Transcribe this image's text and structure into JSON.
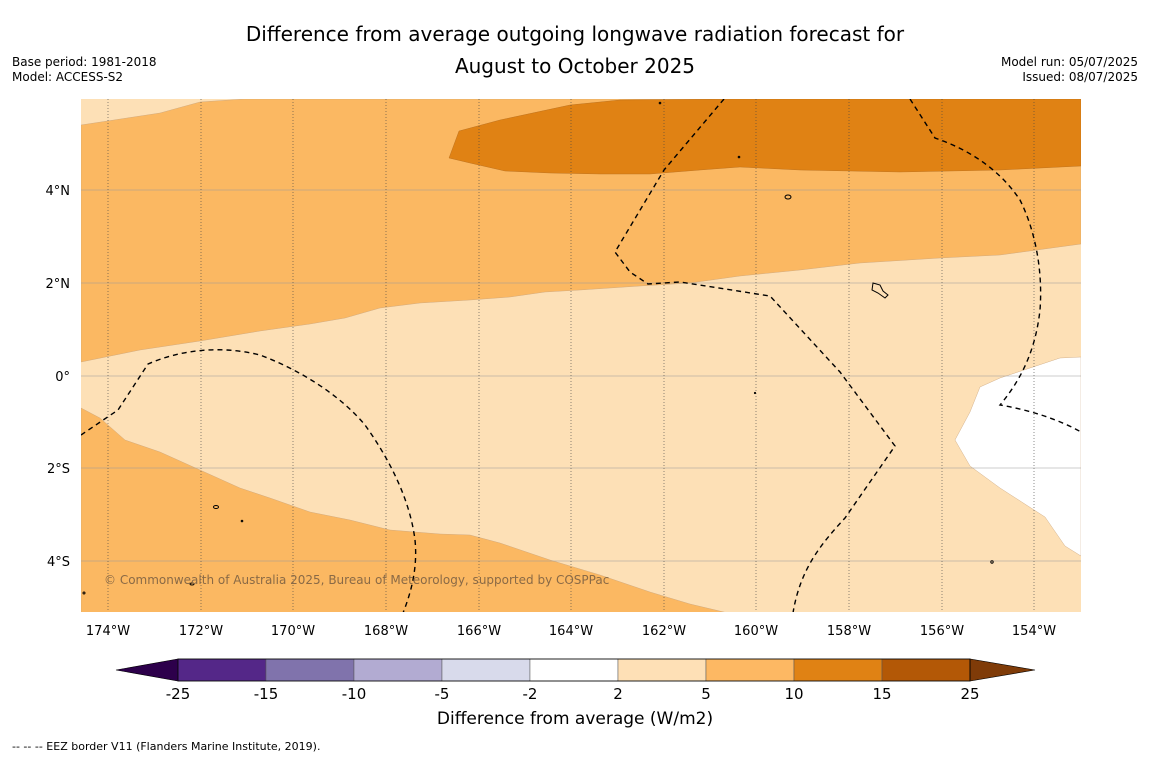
{
  "title": {
    "line1": "Difference from average outgoing longwave radiation forecast for",
    "line2": "August to October 2025"
  },
  "meta_left": {
    "base_period": "Base period: 1981-2018",
    "model": "Model: ACCESS-S2"
  },
  "meta_right": {
    "model_run": "Model run: 05/07/2025",
    "issued": "Issued: 08/07/2025"
  },
  "map": {
    "lat_labels": [
      "4°N",
      "2°N",
      "0°",
      "2°S",
      "4°S"
    ],
    "lon_labels": [
      "174°W",
      "172°W",
      "170°W",
      "168°W",
      "166°W",
      "164°W",
      "162°W",
      "160°W",
      "158°W",
      "156°W",
      "154°W"
    ],
    "credit": "© Commonwealth of Australia 2025, Bureau of Meteorology, supported by COSPPac",
    "colors": {
      "neg2_2": "#ffffff",
      "p2_5": "#fde0b6",
      "p5_10": "#fbb862",
      "p10_15": "#e08214",
      "p15_25": "#b35806"
    }
  },
  "colorbar": {
    "ticks": [
      "-25",
      "-15",
      "-10",
      "-5",
      "-2",
      "2",
      "5",
      "10",
      "15",
      "25"
    ],
    "colors": [
      "#542788",
      "#8073ac",
      "#b2abd2",
      "#d8daeb",
      "#ffffff",
      "#fee0b6",
      "#fdb863",
      "#e08214",
      "#b35806"
    ],
    "low_extend_color": "#2d004b",
    "high_extend_color": "#7f3b08",
    "label": "Difference from average (W/m2)"
  },
  "footnote": "--  --  -- EEZ border V11 (Flanders Marine Institute, 2019)."
}
